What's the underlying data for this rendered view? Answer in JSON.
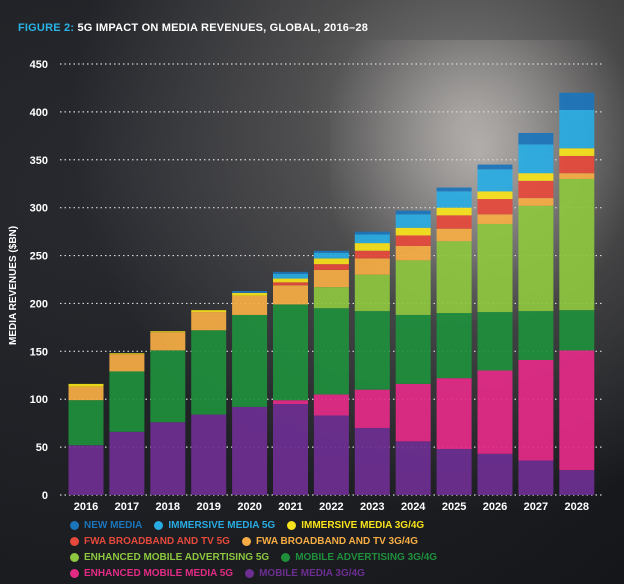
{
  "title": {
    "prefix": "FIGURE 2:",
    "text": "5G IMPACT ON MEDIA REVENUES, GLOBAL, 2016–28"
  },
  "chart_data": {
    "type": "bar",
    "stacked": true,
    "ylabel": "MEDIA REVENUES ($BN)",
    "ylim": [
      0,
      450
    ],
    "yticks": [
      0,
      50,
      100,
      150,
      200,
      250,
      300,
      350,
      400,
      450
    ],
    "grid": "horizontal dotted",
    "legend_position": "bottom",
    "categories": [
      "2016",
      "2017",
      "2018",
      "2019",
      "2020",
      "2021",
      "2022",
      "2023",
      "2024",
      "2025",
      "2026",
      "2027",
      "2028"
    ],
    "series": [
      {
        "name": "MOBILE MEDIA 3G/4G",
        "color": "#6d2e91",
        "values": [
          52,
          66,
          76,
          84,
          92,
          95,
          83,
          70,
          56,
          48,
          43,
          36,
          26
        ]
      },
      {
        "name": "ENHANCED MOBILE MEDIA 5G",
        "color": "#e32b86",
        "values": [
          0,
          0,
          0,
          0,
          0,
          4,
          22,
          40,
          60,
          74,
          87,
          105,
          125
        ]
      },
      {
        "name": "MOBILE ADVERTISING 3G/4G",
        "color": "#1f8f3c",
        "values": [
          47,
          63,
          75,
          88,
          96,
          100,
          90,
          82,
          72,
          68,
          61,
          51,
          42
        ]
      },
      {
        "name": "ENHANCED MOBILE ADVERTISING 5G",
        "color": "#8dc63f",
        "values": [
          0,
          0,
          0,
          0,
          0,
          0,
          22,
          38,
          57,
          75,
          92,
          110,
          137
        ]
      },
      {
        "name": "FWA BROADBAND AND TV 3G/4G",
        "color": "#f6ad45",
        "values": [
          14,
          18,
          19,
          19,
          20,
          20,
          18,
          17,
          15,
          13,
          10,
          8,
          6
        ]
      },
      {
        "name": "FWA BROADBAND AND TV 5G",
        "color": "#e5493b",
        "values": [
          0,
          0,
          0,
          0,
          0,
          3,
          6,
          8,
          11,
          14,
          16,
          18,
          18
        ]
      },
      {
        "name": "IMMERSIVE MEDIA 3G/4G",
        "color": "#f7e21b",
        "values": [
          3,
          1,
          1,
          2,
          3,
          4,
          6,
          8,
          8,
          8,
          8,
          8,
          8
        ]
      },
      {
        "name": "IMMERSIVE MEDIA 5G",
        "color": "#29abe2",
        "values": [
          0,
          0,
          0,
          0,
          0,
          5,
          6,
          9,
          14,
          17,
          23,
          30,
          40
        ]
      },
      {
        "name": "NEW MEDIA",
        "color": "#1b75bb",
        "values": [
          0,
          0,
          0,
          0,
          2,
          2,
          2,
          3,
          4,
          4,
          5,
          12,
          18
        ]
      }
    ]
  },
  "legend": {
    "rows": [
      [
        {
          "label": "NEW MEDIA",
          "color": "#1b75bb"
        },
        {
          "label": "IMMERSIVE MEDIA 5G",
          "color": "#29abe2"
        },
        {
          "label": "IMMERSIVE MEDIA 3G/4G",
          "color": "#f7e21b"
        }
      ],
      [
        {
          "label": "FWA BROADBAND AND TV 5G",
          "color": "#e5493b"
        },
        {
          "label": "FWA BROADBAND AND TV 3G/4G",
          "color": "#f6ad45"
        }
      ],
      [
        {
          "label": "ENHANCED MOBILE ADVERTISING 5G",
          "color": "#8dc63f"
        },
        {
          "label": "MOBILE ADVERTISING 3G/4G",
          "color": "#1f8f3c"
        }
      ],
      [
        {
          "label": "ENHANCED MOBILE MEDIA 5G",
          "color": "#e32b86"
        },
        {
          "label": "MOBILE MEDIA 3G/4G",
          "color": "#6d2e91"
        }
      ]
    ]
  }
}
